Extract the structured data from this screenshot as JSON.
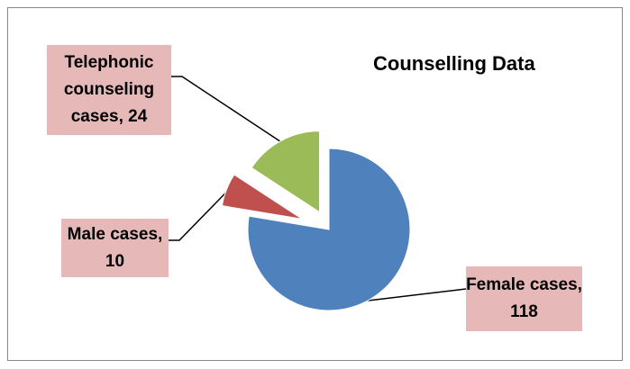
{
  "chart_data": {
    "type": "pie",
    "title": "Counselling Data",
    "values": [
      118,
      10,
      24
    ],
    "value_labels": [
      "Female cases, 118",
      "Male cases, 10",
      "Telephonic counseling cases, 24"
    ],
    "colors": [
      "#4f81bd",
      "#c0504d",
      "#9bbb59"
    ]
  }
}
